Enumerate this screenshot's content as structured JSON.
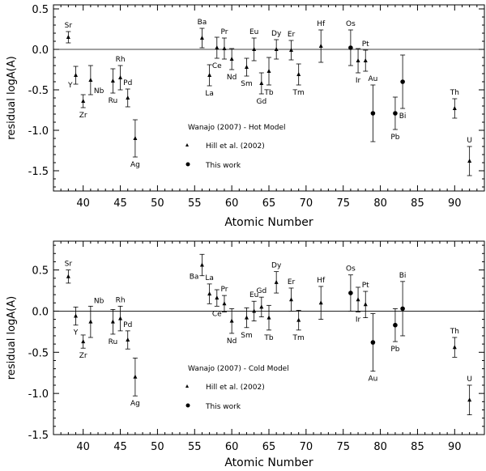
{
  "chart_data": [
    {
      "type": "scatter",
      "title": "Wanajo (2007) - Hot Model",
      "xlabel": "Atomic Number",
      "ylabel": "residual logA(A)",
      "xlim": [
        36,
        94
      ],
      "ylim": [
        -1.75,
        0.55
      ],
      "xticks": [
        40,
        45,
        50,
        55,
        60,
        65,
        70,
        75,
        80,
        85,
        90
      ],
      "yticks": [
        0.5,
        0.0,
        -0.5,
        -1.0,
        -1.5
      ],
      "ytick_labels": [
        "0.5",
        "0.0",
        "-0.5",
        "-1.0",
        "-1.5"
      ],
      "reference_line": 0,
      "legend": [
        {
          "marker": "triangle",
          "label": "Hill et al. (2002)"
        },
        {
          "marker": "circle",
          "label": "This work"
        }
      ],
      "series": [
        {
          "name": "Hill et al. (2002)",
          "marker": "triangle",
          "points": [
            {
              "el": "Sr",
              "x": 38,
              "y": 0.15,
              "err": 0.07,
              "lpos": "above"
            },
            {
              "el": "Y",
              "x": 39,
              "y": -0.32,
              "err": 0.11,
              "lpos": "below-left"
            },
            {
              "el": "Zr",
              "x": 40,
              "y": -0.64,
              "err": 0.08,
              "lpos": "below"
            },
            {
              "el": "Nb",
              "x": 41,
              "y": -0.38,
              "err": 0.18,
              "lpos": "below-right"
            },
            {
              "el": "Ru",
              "x": 44,
              "y": -0.39,
              "err": 0.15,
              "lpos": "below"
            },
            {
              "el": "Rh",
              "x": 45,
              "y": -0.35,
              "err": 0.15,
              "lpos": "above"
            },
            {
              "el": "Pd",
              "x": 46,
              "y": -0.6,
              "err": 0.11,
              "lpos": "above"
            },
            {
              "el": "Ag",
              "x": 47,
              "y": -1.1,
              "err": 0.23,
              "lpos": "below"
            },
            {
              "el": "Ba",
              "x": 56,
              "y": 0.14,
              "err": 0.12,
              "lpos": "above"
            },
            {
              "el": "La",
              "x": 57,
              "y": -0.32,
              "err": 0.13,
              "lpos": "below"
            },
            {
              "el": "Ce",
              "x": 58,
              "y": 0.02,
              "err": 0.13,
              "lpos": "below"
            },
            {
              "el": "Pr",
              "x": 59,
              "y": 0.01,
              "err": 0.13,
              "lpos": "above"
            },
            {
              "el": "Nd",
              "x": 60,
              "y": -0.12,
              "err": 0.13,
              "lpos": "below"
            },
            {
              "el": "Sm",
              "x": 62,
              "y": -0.22,
              "err": 0.11,
              "lpos": "below"
            },
            {
              "el": "Eu",
              "x": 63,
              "y": 0.0,
              "err": 0.14,
              "lpos": "above"
            },
            {
              "el": "Gd",
              "x": 64,
              "y": -0.42,
              "err": 0.13,
              "lpos": "below"
            },
            {
              "el": "Tb",
              "x": 65,
              "y": -0.27,
              "err": 0.17,
              "lpos": "below"
            },
            {
              "el": "Dy",
              "x": 66,
              "y": 0.0,
              "err": 0.12,
              "lpos": "above"
            },
            {
              "el": "Er",
              "x": 68,
              "y": -0.01,
              "err": 0.12,
              "lpos": "above"
            },
            {
              "el": "Tm",
              "x": 69,
              "y": -0.31,
              "err": 0.13,
              "lpos": "below"
            },
            {
              "el": "Hf",
              "x": 72,
              "y": 0.04,
              "err": 0.2,
              "lpos": "above"
            },
            {
              "el": "Ir",
              "x": 77,
              "y": -0.14,
              "err": 0.15,
              "lpos": "below"
            },
            {
              "el": "Pt",
              "x": 78,
              "y": -0.14,
              "err": 0.13,
              "lpos": "above"
            },
            {
              "el": "Th",
              "x": 90,
              "y": -0.73,
              "err": 0.12,
              "lpos": "above"
            },
            {
              "el": "U",
              "x": 92,
              "y": -1.38,
              "err": 0.18,
              "lpos": "above"
            }
          ]
        },
        {
          "name": "This work",
          "marker": "circle",
          "points": [
            {
              "el": "Os",
              "x": 76,
              "y": 0.02,
              "err": 0.22,
              "lpos": "above"
            },
            {
              "el": "Au",
              "x": 79,
              "y": -0.79,
              "err": 0.35,
              "lpos": "above"
            },
            {
              "el": "Pb",
              "x": 82,
              "y": -0.79,
              "err": 0.2,
              "lpos": "below"
            },
            {
              "el": "Bi",
              "x": 83,
              "y": -0.4,
              "err": 0.33,
              "lpos": "below"
            }
          ]
        }
      ]
    },
    {
      "type": "scatter",
      "title": "Wanajo (2007) - Cold Model",
      "xlabel": "Atomic Number",
      "ylabel": "residual logA(A)",
      "xlim": [
        36,
        94
      ],
      "ylim": [
        -1.5,
        0.85
      ],
      "xticks": [
        40,
        45,
        50,
        55,
        60,
        65,
        70,
        75,
        80,
        85,
        90
      ],
      "yticks": [
        0.5,
        0.0,
        -0.5,
        -1.0,
        -1.5
      ],
      "ytick_labels": [
        "0.5",
        "0.0",
        "-0.5",
        "-1.0",
        "-1.5"
      ],
      "reference_line": 0,
      "legend": [
        {
          "marker": "triangle",
          "label": "Hill et al. (2002)"
        },
        {
          "marker": "circle",
          "label": "This work"
        }
      ],
      "series": [
        {
          "name": "Hill et al. (2002)",
          "marker": "triangle",
          "points": [
            {
              "el": "Sr",
              "x": 38,
              "y": 0.42,
              "err": 0.08,
              "lpos": "above"
            },
            {
              "el": "Y",
              "x": 39,
              "y": -0.06,
              "err": 0.11,
              "lpos": "below"
            },
            {
              "el": "Zr",
              "x": 40,
              "y": -0.37,
              "err": 0.08,
              "lpos": "below"
            },
            {
              "el": "Nb",
              "x": 41,
              "y": -0.13,
              "err": 0.19,
              "lpos": "above-right"
            },
            {
              "el": "Ru",
              "x": 44,
              "y": -0.13,
              "err": 0.15,
              "lpos": "below"
            },
            {
              "el": "Rh",
              "x": 45,
              "y": -0.09,
              "err": 0.15,
              "lpos": "above"
            },
            {
              "el": "Pd",
              "x": 46,
              "y": -0.35,
              "err": 0.11,
              "lpos": "above"
            },
            {
              "el": "Ag",
              "x": 47,
              "y": -0.8,
              "err": 0.23,
              "lpos": "below"
            },
            {
              "el": "Ba",
              "x": 56,
              "y": 0.56,
              "err": 0.13,
              "lpos": "below-left"
            },
            {
              "el": "La",
              "x": 57,
              "y": 0.21,
              "err": 0.12,
              "lpos": "above"
            },
            {
              "el": "Ce",
              "x": 58,
              "y": 0.16,
              "err": 0.1,
              "lpos": "below"
            },
            {
              "el": "Pr",
              "x": 59,
              "y": 0.09,
              "err": 0.1,
              "lpos": "above"
            },
            {
              "el": "Nd",
              "x": 60,
              "y": -0.12,
              "err": 0.15,
              "lpos": "below"
            },
            {
              "el": "Sm",
              "x": 62,
              "y": -0.08,
              "err": 0.12,
              "lpos": "below"
            },
            {
              "el": "Eu",
              "x": 63,
              "y": 0.0,
              "err": 0.12,
              "lpos": "above"
            },
            {
              "el": "Gd",
              "x": 64,
              "y": 0.05,
              "err": 0.12,
              "lpos": "above"
            },
            {
              "el": "Tb",
              "x": 65,
              "y": -0.08,
              "err": 0.15,
              "lpos": "below"
            },
            {
              "el": "Dy",
              "x": 66,
              "y": 0.35,
              "err": 0.13,
              "lpos": "above"
            },
            {
              "el": "Er",
              "x": 68,
              "y": 0.14,
              "err": 0.14,
              "lpos": "above"
            },
            {
              "el": "Tm",
              "x": 69,
              "y": -0.11,
              "err": 0.12,
              "lpos": "below"
            },
            {
              "el": "Hf",
              "x": 72,
              "y": 0.1,
              "err": 0.2,
              "lpos": "above"
            },
            {
              "el": "Ir",
              "x": 77,
              "y": 0.14,
              "err": 0.15,
              "lpos": "below"
            },
            {
              "el": "Pt",
              "x": 78,
              "y": 0.08,
              "err": 0.16,
              "lpos": "above"
            },
            {
              "el": "Th",
              "x": 90,
              "y": -0.44,
              "err": 0.12,
              "lpos": "above"
            },
            {
              "el": "U",
              "x": 92,
              "y": -1.08,
              "err": 0.18,
              "lpos": "above"
            }
          ]
        },
        {
          "name": "This work",
          "marker": "circle",
          "points": [
            {
              "el": "Os",
              "x": 76,
              "y": 0.22,
              "err": 0.22,
              "lpos": "above"
            },
            {
              "el": "Au",
              "x": 79,
              "y": -0.38,
              "err": 0.35,
              "lpos": "below"
            },
            {
              "el": "Pb",
              "x": 82,
              "y": -0.17,
              "err": 0.2,
              "lpos": "below"
            },
            {
              "el": "Bi",
              "x": 83,
              "y": 0.03,
              "err": 0.33,
              "lpos": "above"
            }
          ]
        }
      ]
    }
  ]
}
